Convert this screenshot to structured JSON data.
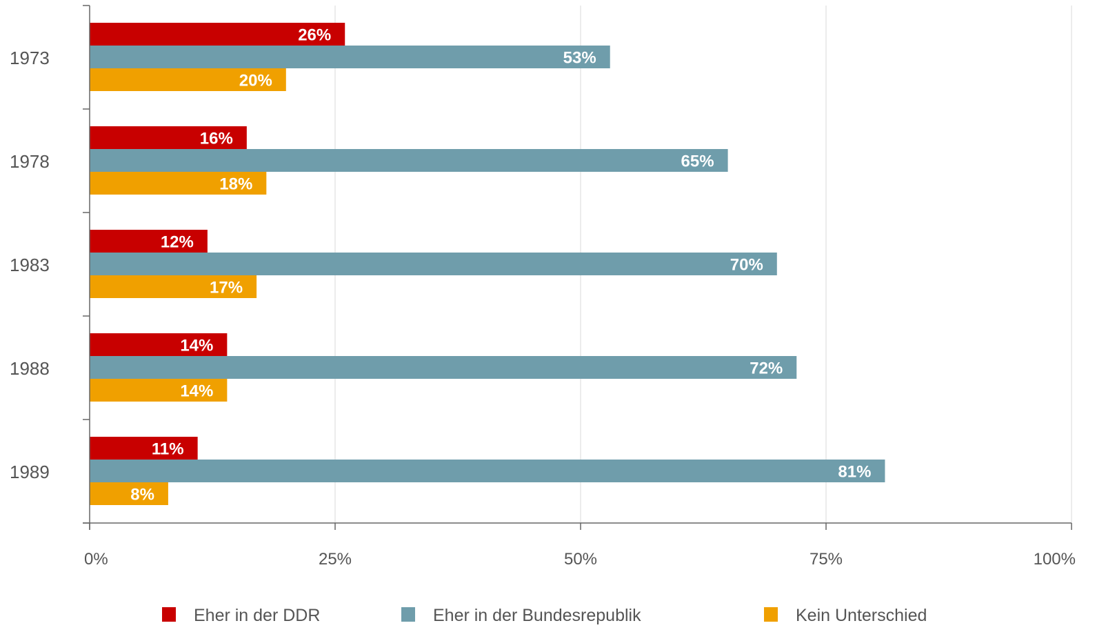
{
  "chart_data": {
    "type": "bar",
    "orientation": "horizontal",
    "categories": [
      "1973",
      "1978",
      "1983",
      "1988",
      "1989"
    ],
    "series": [
      {
        "name": "Eher in der DDR",
        "color": "#c80000",
        "values": [
          26,
          16,
          12,
          14,
          11
        ],
        "labels": [
          "26%",
          "16%",
          "12%",
          "14%",
          "11%"
        ]
      },
      {
        "name": "Eher in der Bundesrepublik",
        "color": "#6f9dab",
        "values": [
          53,
          65,
          70,
          72,
          81
        ],
        "labels": [
          "53%",
          "65%",
          "70%",
          "72%",
          "81%"
        ]
      },
      {
        "name": "Kein Unterschied",
        "color": "#f0a000",
        "values": [
          20,
          18,
          17,
          14,
          8
        ],
        "labels": [
          "20%",
          "18%",
          "17%",
          "14%",
          "8%"
        ]
      }
    ],
    "xlim": [
      0,
      100
    ],
    "xticks": [
      0,
      25,
      50,
      75,
      100
    ],
    "xtick_labels": [
      "0%",
      "25%",
      "50%",
      "75%",
      "100%"
    ],
    "grid": true,
    "legend_position": "bottom"
  }
}
